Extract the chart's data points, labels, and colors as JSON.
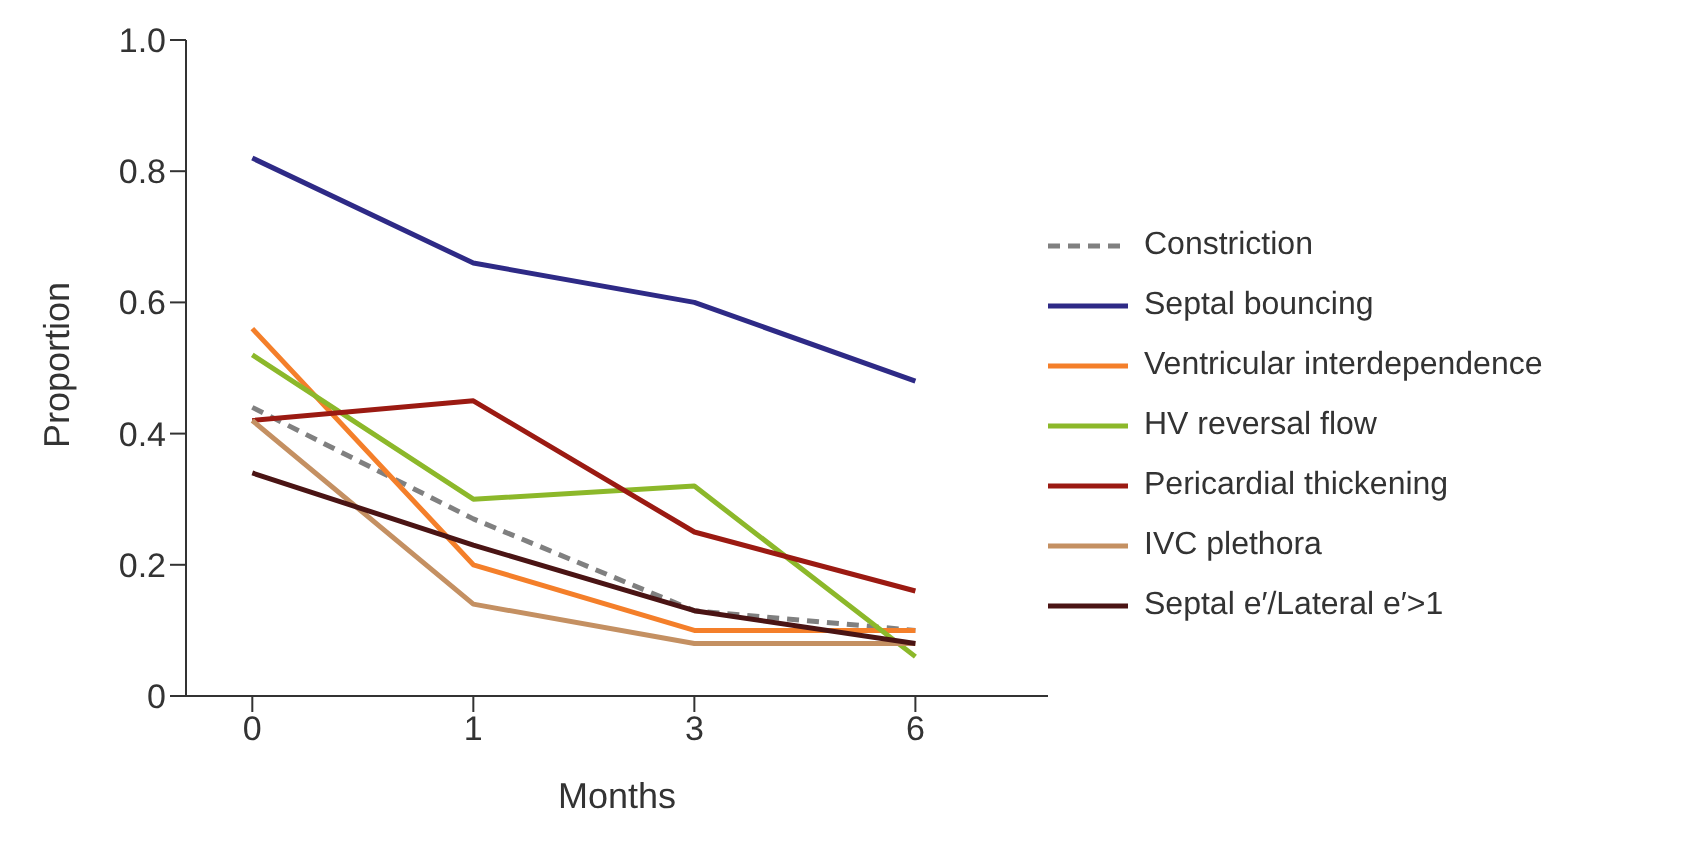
{
  "chart_data": {
    "type": "line",
    "xlabel": "Months",
    "ylabel": "Proportion",
    "categories": [
      "0",
      "1",
      "3",
      "6"
    ],
    "series": [
      {
        "name": "Constriction",
        "color": "#808080",
        "line_style": "dashed",
        "values": [
          0.44,
          0.27,
          0.13,
          0.1
        ]
      },
      {
        "name": "Septal bouncing",
        "color": "#2e2a86",
        "values": [
          0.82,
          0.66,
          0.6,
          0.48
        ]
      },
      {
        "name": "Ventricular interdependence",
        "color": "#f47f2a",
        "values": [
          0.56,
          0.2,
          0.1,
          0.1
        ]
      },
      {
        "name": "HV reversal flow",
        "color": "#8cb82a",
        "values": [
          0.52,
          0.3,
          0.32,
          0.06
        ]
      },
      {
        "name": "Pericardial thickening",
        "color": "#9b1a12",
        "values": [
          0.42,
          0.45,
          0.25,
          0.16
        ]
      },
      {
        "name": "IVC plethora",
        "color": "#c49062",
        "values": [
          0.42,
          0.14,
          0.08,
          0.08
        ]
      },
      {
        "name": "Septal e′/Lateral e′>1",
        "color": "#4a1414",
        "values": [
          0.34,
          0.23,
          0.13,
          0.08
        ]
      }
    ],
    "ylim": [
      0,
      1
    ],
    "yticks": [
      0,
      0.2,
      0.4,
      0.6,
      0.8,
      {
        "value": 1,
        "label": "1.0"
      }
    ],
    "grid": false,
    "legend": "right",
    "marker": "none",
    "line_style": "solid"
  }
}
